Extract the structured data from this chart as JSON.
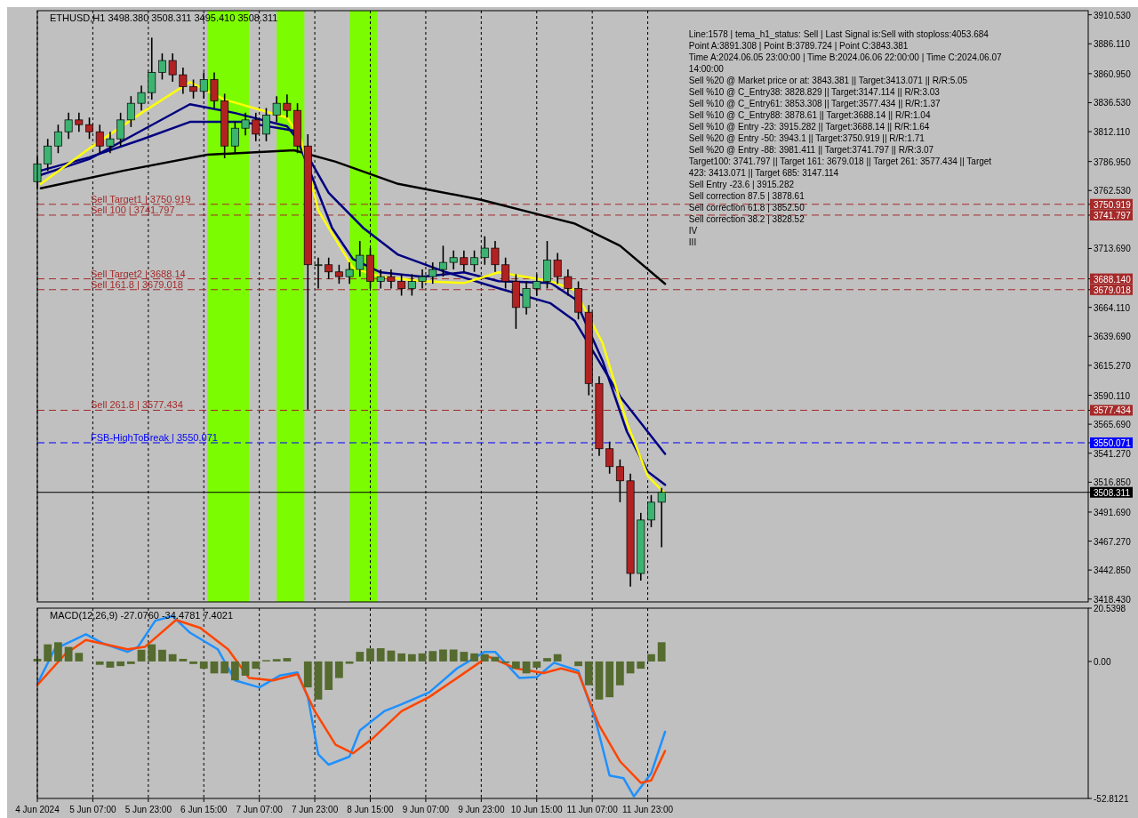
{
  "chart_data": [
    {
      "type": "candlestick",
      "title": "ETHUSD,H1  3498.380 3508.311 3495.410 3508.311",
      "annotations": [
        "Line:1578 | tema_h1_status: Sell | Last Signal is:Sell with stoploss:4053.684",
        "Point A:3891.308 | Point B:3789.724 | Point C:3843.381",
        "Time A:2024.06.05 23:00:00 | Time B:2024.06.06 22:00:00 | Time C:2024.06.07 14:00:00",
        "Sell %20 @ Market price or at: 3843.381 || Target:3413.071 || R/R:5.05",
        "Sell %10 @ C_Entry38: 3828.829 || Target:3147.114 || R/R:3.03",
        "Sell %10 @ C_Entry61: 3853.308 || Target:3577.434 || R/R:1.37",
        "Sell %10 @ C_Entry88: 3878.61 || Target:3688.14 || R/R:1.04",
        "Sell %10 @ Entry -23: 3915.282 || Target:3688.14 || R/R:1.64",
        "Sell %20 @ Entry -50: 3943.1 || Target:3750.919 || R/R:1.71",
        "Sell %20 @ Entry -88: 3981.411 || Target:3741.797 || R/R:3.07",
        "Target100: 3741.797 || Target 161: 3679.018 || Target 261: 3577.434 || Target 423: 3413.071 || Target 685: 3147.114",
        "Sell Entry -23.6 | 3915.282",
        "Sell correction 87.5 | 3878.61",
        "Sell correction 61.8 | 3852.50",
        "Sell correction 38.2 | 3828.52",
        "IV",
        "III"
      ],
      "x": [
        "2024-06-04T15:00",
        "2024-06-04T18:00",
        "2024-06-04T21:00",
        "2024-06-05T00:00",
        "2024-06-05T03:00",
        "2024-06-05T06:00",
        "2024-06-05T09:00",
        "2024-06-05T12:00",
        "2024-06-05T15:00",
        "2024-06-05T18:00",
        "2024-06-05T21:00",
        "2024-06-06T00:00",
        "2024-06-06T03:00",
        "2024-06-06T06:00",
        "2024-06-06T09:00",
        "2024-06-06T12:00",
        "2024-06-06T15:00",
        "2024-06-06T18:00",
        "2024-06-06T21:00",
        "2024-06-07T00:00",
        "2024-06-07T03:00",
        "2024-06-07T06:00",
        "2024-06-07T09:00",
        "2024-06-07T12:00",
        "2024-06-07T15:00",
        "2024-06-07T18:00",
        "2024-06-07T21:00",
        "2024-06-08T00:00",
        "2024-06-08T03:00",
        "2024-06-08T06:00",
        "2024-06-08T09:00",
        "2024-06-08T12:00",
        "2024-06-08T15:00",
        "2024-06-08T18:00",
        "2024-06-08T21:00",
        "2024-06-09T00:00",
        "2024-06-09T03:00",
        "2024-06-09T06:00",
        "2024-06-09T09:00",
        "2024-06-09T12:00",
        "2024-06-09T15:00",
        "2024-06-09T18:00",
        "2024-06-09T21:00",
        "2024-06-10T00:00",
        "2024-06-10T03:00",
        "2024-06-10T06:00",
        "2024-06-10T09:00",
        "2024-06-10T12:00",
        "2024-06-10T15:00",
        "2024-06-10T18:00",
        "2024-06-10T21:00",
        "2024-06-11T00:00",
        "2024-06-11T03:00",
        "2024-06-11T06:00",
        "2024-06-11T09:00",
        "2024-06-11T12:00",
        "2024-06-11T15:00",
        "2024-06-11T18:00",
        "2024-06-11T21:00",
        "2024-06-12T00:00",
        "2024-06-12T03:00"
      ],
      "ohlc": [
        [
          3770,
          3791,
          3764,
          3785
        ],
        [
          3785,
          3806,
          3779,
          3800
        ],
        [
          3800,
          3818,
          3794,
          3812
        ],
        [
          3812,
          3828,
          3806,
          3822
        ],
        [
          3822,
          3828,
          3812,
          3818
        ],
        [
          3818,
          3824,
          3806,
          3812
        ],
        [
          3812,
          3818,
          3794,
          3800
        ],
        [
          3800,
          3812,
          3794,
          3806
        ],
        [
          3806,
          3828,
          3800,
          3822
        ],
        [
          3822,
          3842,
          3816,
          3836
        ],
        [
          3836,
          3851,
          3830,
          3845
        ],
        [
          3845,
          3891.3,
          3839,
          3862
        ],
        [
          3862,
          3878,
          3856,
          3872
        ],
        [
          3872,
          3878,
          3854,
          3860
        ],
        [
          3860,
          3866,
          3844,
          3850
        ],
        [
          3850,
          3856,
          3840,
          3846
        ],
        [
          3846,
          3862,
          3840,
          3856
        ],
        [
          3856,
          3862,
          3832,
          3838
        ],
        [
          3838,
          3844,
          3789.7,
          3800
        ],
        [
          3800,
          3821,
          3794,
          3815
        ],
        [
          3815,
          3828,
          3809,
          3822
        ],
        [
          3822,
          3828,
          3804,
          3810
        ],
        [
          3810,
          3832,
          3804,
          3826
        ],
        [
          3826,
          3842,
          3820,
          3836
        ],
        [
          3836,
          3843.4,
          3824,
          3830
        ],
        [
          3830,
          3836,
          3794,
          3800
        ],
        [
          3800,
          3810,
          3578,
          3700
        ],
        [
          3700,
          3706,
          3680,
          3700
        ],
        [
          3700,
          3706,
          3688,
          3694
        ],
        [
          3694,
          3700,
          3684,
          3690
        ],
        [
          3690,
          3702,
          3684,
          3696
        ],
        [
          3696,
          3720,
          3690,
          3708
        ],
        [
          3708,
          3714,
          3680,
          3686
        ],
        [
          3686,
          3696,
          3680,
          3690
        ],
        [
          3690,
          3696,
          3680,
          3686
        ],
        [
          3686,
          3692,
          3674,
          3680
        ],
        [
          3680,
          3692,
          3674,
          3686
        ],
        [
          3686,
          3696,
          3680,
          3690
        ],
        [
          3690,
          3702,
          3684,
          3696
        ],
        [
          3696,
          3716,
          3690,
          3702
        ],
        [
          3702,
          3712,
          3696,
          3706
        ],
        [
          3706,
          3712,
          3694,
          3700
        ],
        [
          3700,
          3712,
          3694,
          3706
        ],
        [
          3706,
          3724,
          3700,
          3714
        ],
        [
          3714,
          3720,
          3694,
          3700
        ],
        [
          3700,
          3706,
          3680,
          3686
        ],
        [
          3686,
          3692,
          3646,
          3664
        ],
        [
          3664,
          3686,
          3658,
          3680
        ],
        [
          3680,
          3692,
          3674,
          3686
        ],
        [
          3686,
          3720,
          3680,
          3704
        ],
        [
          3704,
          3710,
          3684,
          3690
        ],
        [
          3690,
          3696,
          3674,
          3680
        ],
        [
          3680,
          3686,
          3654,
          3660
        ],
        [
          3660,
          3666,
          3590,
          3600
        ],
        [
          3600,
          3606,
          3539,
          3545
        ],
        [
          3545,
          3551,
          3524,
          3530
        ],
        [
          3530,
          3536,
          3500,
          3518
        ],
        [
          3518,
          3524,
          3429,
          3440
        ],
        [
          3440,
          3491,
          3434,
          3485
        ],
        [
          3485,
          3506,
          3479,
          3500
        ],
        [
          3500,
          3512,
          3462,
          3508.311
        ]
      ],
      "series": [
        {
          "type": "line",
          "color": "#000000",
          "x": [
            "2024-06-04T16:00",
            "2024-06-05T16:00",
            "2024-06-06T16:00",
            "2024-06-07T17:00",
            "2024-06-08T05:00",
            "2024-06-08T23:00",
            "2024-06-09T23:00",
            "2024-06-10T19:00",
            "2024-06-11T02:00",
            "2024-06-11T15:00",
            "2024-06-12T04:00"
          ],
          "values": [
            3764.4,
            3779.3,
            3792.7,
            3796.4,
            3786.8,
            3768.1,
            3754.7,
            3739.8,
            3734.6,
            3716.0,
            3683.9
          ]
        },
        {
          "type": "line",
          "color": "#000080",
          "x": [
            "2024-06-04T16:00",
            "2024-06-05T06:00",
            "2024-06-05T21:00",
            "2024-06-06T11:00",
            "2024-06-07T00:00",
            "2024-06-07T15:00",
            "2024-06-07T19:00",
            "2024-06-08T03:00",
            "2024-06-08T13:00",
            "2024-06-08T23:00",
            "2024-06-09T13:00",
            "2024-06-10T04:00",
            "2024-06-10T19:00",
            "2024-06-11T02:00",
            "2024-06-11T15:00",
            "2024-06-12T04:00"
          ],
          "values": [
            3775.6,
            3789.0,
            3812.9,
            3835.2,
            3827.8,
            3816.6,
            3801.7,
            3760.6,
            3730.9,
            3708.5,
            3693.6,
            3680.2,
            3667.5,
            3652.6,
            3589.2,
            3540.7
          ]
        },
        {
          "type": "line",
          "color": "#000080",
          "x": [
            "2024-06-04T16:00",
            "2024-06-05T06:00",
            "2024-06-05T21:00",
            "2024-06-06T11:00",
            "2024-06-07T02:00",
            "2024-06-07T17:00",
            "2024-06-07T23:00",
            "2024-06-08T04:00",
            "2024-06-08T10:00",
            "2024-06-08T18:00",
            "2024-06-09T06:00",
            "2024-06-09T18:00",
            "2024-06-10T04:00",
            "2024-06-10T19:00",
            "2024-06-11T02:00",
            "2024-06-11T10:00",
            "2024-06-11T17:00",
            "2024-06-11T23:00",
            "2024-06-12T04:00"
          ],
          "values": [
            3779.3,
            3790.5,
            3805.4,
            3820.3,
            3820.3,
            3812.9,
            3768.1,
            3730.9,
            3704.8,
            3693.6,
            3689.9,
            3693.6,
            3686.1,
            3684.6,
            3671.2,
            3619.0,
            3559.4,
            3525.8,
            3514.6
          ]
        },
        {
          "type": "line",
          "color": "#ffff00",
          "x": [
            "2024-06-04T16:00",
            "2024-06-05T06:00",
            "2024-06-05T21:00",
            "2024-06-06T11:00",
            "2024-06-06T21:00",
            "2024-06-07T15:00",
            "2024-06-07T19:00",
            "2024-06-08T00:00",
            "2024-06-08T10:00",
            "2024-06-08T18:00",
            "2024-06-09T06:00",
            "2024-06-09T18:00",
            "2024-06-10T04:00",
            "2024-06-10T19:00",
            "2024-06-11T02:00",
            "2024-06-11T10:00",
            "2024-06-11T17:00",
            "2024-06-11T23:00",
            "2024-06-12T04:00"
          ],
          "values": [
            3768.1,
            3798.0,
            3827.8,
            3853.9,
            3839.0,
            3824.0,
            3805.4,
            3745.7,
            3697.3,
            3689.9,
            3686.1,
            3684.6,
            3693.6,
            3686.1,
            3678.7,
            3633.9,
            3566.8,
            3522.1,
            3507.2
          ]
        }
      ],
      "bands": [
        {
          "axis": "x",
          "from": "2024-06-06T16:00",
          "to": "2024-06-07T04:00",
          "color": "#7cfc00"
        },
        {
          "axis": "x",
          "from": "2024-06-07T12:00",
          "to": "2024-06-07T20:00",
          "color": "#7cfc00"
        },
        {
          "axis": "x",
          "from": "2024-06-08T09:00",
          "to": "2024-06-08T17:00",
          "color": "#7cfc00"
        }
      ],
      "ref_lines": [
        {
          "axis": "y",
          "value": 3750.919,
          "label": "Sell Target1 | 3750.919",
          "color": "#a52a2a",
          "line_style": "dashed"
        },
        {
          "axis": "y",
          "value": 3741.797,
          "label": "Sell 100 | 3741.797",
          "color": "#a52a2a",
          "line_style": "dashed"
        },
        {
          "axis": "y",
          "value": 3688.14,
          "label": "Sell Target2 | 3688.14",
          "color": "#a52a2a",
          "line_style": "dashed"
        },
        {
          "axis": "y",
          "value": 3679.018,
          "label": "Sell 161.8 | 3679.018",
          "color": "#a52a2a",
          "line_style": "dashed"
        },
        {
          "axis": "y",
          "value": 3577.434,
          "label": "Sell 261.8 | 3577.434",
          "color": "#a52a2a",
          "line_style": "dashed"
        },
        {
          "axis": "y",
          "value": 3550.071,
          "label": "FSB-HighToBreak | 3550.071",
          "color": "#0000ff",
          "line_style": "dashed"
        },
        {
          "axis": "y",
          "value": 3508.311,
          "color": "#000000",
          "line_style": "solid"
        }
      ],
      "xlim": [
        "2024-06-04T15:00",
        "2024-06-17T06:00"
      ],
      "ylim": [
        3416,
        3914
      ],
      "yticks": [
        {
          "value": 3910.53,
          "label": "3910.530"
        },
        {
          "value": 3886.11,
          "label": "3886.110"
        },
        {
          "value": 3860.95,
          "label": "3860.950"
        },
        {
          "value": 3836.53,
          "label": "3836.530"
        },
        {
          "value": 3812.11,
          "label": "3812.110"
        },
        {
          "value": 3786.95,
          "label": "3786.950"
        },
        {
          "value": 3762.53,
          "label": "3762.530"
        },
        {
          "value": 3750.919,
          "label": "3750.919"
        },
        {
          "value": 3741.797,
          "label": "3741.797"
        },
        {
          "value": 3713.69,
          "label": "3713.690"
        },
        {
          "value": 3688.14,
          "label": "3688.140"
        },
        {
          "value": 3679.018,
          "label": "3679.018"
        },
        {
          "value": 3664.11,
          "label": "3664.110"
        },
        {
          "value": 3639.69,
          "label": "3639.690"
        },
        {
          "value": 3615.27,
          "label": "3615.270"
        },
        {
          "value": 3590.11,
          "label": "3590.110"
        },
        {
          "value": 3577.434,
          "label": "3577.434"
        },
        {
          "value": 3565.69,
          "label": "3565.690"
        },
        {
          "value": 3550.071,
          "label": "3550.071"
        },
        {
          "value": 3541.27,
          "label": "3541.270"
        },
        {
          "value": 3516.85,
          "label": "3516.850"
        },
        {
          "value": 3508.311,
          "label": "3508.311"
        },
        {
          "value": 3491.69,
          "label": "3491.690"
        },
        {
          "value": 3467.27,
          "label": "3467.270"
        },
        {
          "value": 3442.85,
          "label": "3442.850"
        },
        {
          "value": 3418.43,
          "label": "3418.430"
        }
      ],
      "xticks": [
        {
          "value": "2024-06-04T15:00",
          "label": null
        },
        {
          "value": "2024-06-05T07:00",
          "label": null
        },
        {
          "value": "2024-06-05T23:00",
          "label": null
        },
        {
          "value": "2024-06-06T15:00",
          "label": null
        },
        {
          "value": "2024-06-07T07:00",
          "label": null
        },
        {
          "value": "2024-06-07T23:00",
          "label": null
        },
        {
          "value": "2024-06-08T15:00",
          "label": null
        },
        {
          "value": "2024-06-09T07:00",
          "label": null
        },
        {
          "value": "2024-06-09T23:00",
          "label": null
        },
        {
          "value": "2024-06-10T15:00",
          "label": null
        },
        {
          "value": "2024-06-11T07:00",
          "label": null
        },
        {
          "value": "2024-06-11T23:00",
          "label": null
        }
      ],
      "grid": "x",
      "tick_labels": "y"
    },
    {
      "type": "bar",
      "title": "MACD(12,26,9) -27.0760 -34.4781 7.4021",
      "x": [
        "2024-06-04T15:00",
        "2024-06-04T18:00",
        "2024-06-04T21:00",
        "2024-06-05T00:00",
        "2024-06-05T03:00",
        "2024-06-05T06:00",
        "2024-06-05T09:00",
        "2024-06-05T12:00",
        "2024-06-05T15:00",
        "2024-06-05T18:00",
        "2024-06-05T21:00",
        "2024-06-06T00:00",
        "2024-06-06T03:00",
        "2024-06-06T06:00",
        "2024-06-06T09:00",
        "2024-06-06T12:00",
        "2024-06-06T15:00",
        "2024-06-06T18:00",
        "2024-06-06T21:00",
        "2024-06-07T00:00",
        "2024-06-07T03:00",
        "2024-06-07T06:00",
        "2024-06-07T09:00",
        "2024-06-07T12:00",
        "2024-06-07T15:00",
        "2024-06-07T18:00",
        "2024-06-07T21:00",
        "2024-06-08T00:00",
        "2024-06-08T03:00",
        "2024-06-08T06:00",
        "2024-06-08T09:00",
        "2024-06-08T12:00",
        "2024-06-08T15:00",
        "2024-06-08T18:00",
        "2024-06-08T21:00",
        "2024-06-09T00:00",
        "2024-06-09T03:00",
        "2024-06-09T06:00",
        "2024-06-09T09:00",
        "2024-06-09T12:00",
        "2024-06-09T15:00",
        "2024-06-09T18:00",
        "2024-06-09T21:00",
        "2024-06-10T00:00",
        "2024-06-10T03:00",
        "2024-06-10T06:00",
        "2024-06-10T09:00",
        "2024-06-10T12:00",
        "2024-06-10T15:00",
        "2024-06-10T18:00",
        "2024-06-10T21:00",
        "2024-06-11T00:00",
        "2024-06-11T03:00",
        "2024-06-11T06:00",
        "2024-06-11T09:00",
        "2024-06-11T12:00",
        "2024-06-11T15:00",
        "2024-06-11T18:00",
        "2024-06-11T21:00",
        "2024-06-12T00:00",
        "2024-06-12T03:00"
      ],
      "series": [
        {
          "color": "#556b2f",
          "values": [
            1,
            6.6,
            7.4,
            5.6,
            3.3,
            0,
            -1.3,
            -2.4,
            -1.8,
            -1,
            4.5,
            6.6,
            4.5,
            2.8,
            1,
            -1,
            -2.8,
            -4.6,
            -4.6,
            -7.3,
            -5.5,
            -2.8,
            0.5,
            0.9,
            1.3,
            0,
            -10,
            -14.7,
            -11,
            -6.4,
            -0.9,
            3.7,
            5,
            5.1,
            4.2,
            3.1,
            2.8,
            3.1,
            4,
            4.6,
            4.6,
            3.7,
            3.1,
            2.8,
            1.8,
            -0.6,
            -2.8,
            -4.6,
            -2.4,
            1.3,
            2.8,
            0,
            -1.8,
            -9.2,
            -14.7,
            -13.8,
            -9.2,
            -4.6,
            -2.8,
            2.8,
            7.4
          ]
        },
        {
          "type": "line",
          "color": "#1e90ff",
          "x": [
            "2024-06-04T15:00",
            "2024-06-04T20:00",
            "2024-06-05T05:00",
            "2024-06-05T10:00",
            "2024-06-05T17:00",
            "2024-06-05T20:00",
            "2024-06-06T01:00",
            "2024-06-06T06:00",
            "2024-06-06T11:00",
            "2024-06-06T19:00",
            "2024-06-07T00:00",
            "2024-06-07T07:00",
            "2024-06-07T13:00",
            "2024-06-07T18:00",
            "2024-06-07T21:00",
            "2024-06-08T00:00",
            "2024-06-08T03:00",
            "2024-06-08T09:00",
            "2024-06-08T12:00",
            "2024-06-08T19:00",
            "2024-06-09T00:00",
            "2024-06-09T08:00",
            "2024-06-09T16:00",
            "2024-06-10T00:00",
            "2024-06-10T03:00",
            "2024-06-10T10:00",
            "2024-06-10T15:00",
            "2024-06-10T20:00",
            "2024-06-11T03:00",
            "2024-06-11T08:00",
            "2024-06-11T12:00",
            "2024-06-11T16:00",
            "2024-06-11T19:00",
            "2024-06-12T00:00",
            "2024-06-12T04:00"
          ],
          "values": [
            -8.6,
            4.7,
            10.5,
            6.9,
            3.7,
            5.6,
            15.7,
            17.5,
            11.1,
            4.7,
            -7.3,
            -10.0,
            -5.4,
            -4.2,
            -13.7,
            -35.8,
            -39.8,
            -36.7,
            -26.6,
            -19.2,
            -16.5,
            -11.9,
            -2.7,
            3.7,
            3.7,
            -6.4,
            -6.0,
            -0.5,
            -3.6,
            -22.9,
            -44.0,
            -45.0,
            -52.0,
            -43.1,
            -27.1
          ]
        },
        {
          "type": "line",
          "color": "#ff4500",
          "x": [
            "2024-06-04T15:00",
            "2024-06-04T23:00",
            "2024-06-05T05:00",
            "2024-06-05T17:00",
            "2024-06-05T22:00",
            "2024-06-06T07:00",
            "2024-06-06T14:00",
            "2024-06-06T22:00",
            "2024-06-07T04:00",
            "2024-06-07T11:00",
            "2024-06-07T18:00",
            "2024-06-07T23:00",
            "2024-06-08T05:00",
            "2024-06-08T10:00",
            "2024-06-08T16:00",
            "2024-06-09T00:00",
            "2024-06-09T08:00",
            "2024-06-09T16:00",
            "2024-06-10T01:00",
            "2024-06-10T09:00",
            "2024-06-10T17:00",
            "2024-06-10T22:00",
            "2024-06-11T03:00",
            "2024-06-11T09:00",
            "2024-06-11T15:00",
            "2024-06-11T21:00",
            "2024-06-12T00:00",
            "2024-06-12T04:00"
          ],
          "values": [
            -9.1,
            2.8,
            8.3,
            4.7,
            5.6,
            16.0,
            12.9,
            4.7,
            -6.4,
            -7.3,
            -4.9,
            -19.2,
            -32.1,
            -35.4,
            -29.3,
            -19.2,
            -13.7,
            -6.4,
            1.9,
            -2.7,
            -4.5,
            -2.7,
            -4.5,
            -24.7,
            -38.5,
            -46.8,
            -45.9,
            -34.5
          ]
        }
      ],
      "xlim": [
        "2024-06-04T15:00",
        "2024-06-17T06:00"
      ],
      "ylim": [
        -52.8121,
        20.5398
      ],
      "yticks": [
        20.5398,
        {
          "value": 0,
          "label": "0.00"
        },
        -52.8121
      ],
      "xticks": [
        {
          "value": "2024-06-04T15:00",
          "label": "4 Jun 2024"
        },
        {
          "value": "2024-06-05T07:00",
          "label": "5 Jun 07:00"
        },
        {
          "value": "2024-06-05T23:00",
          "label": "5 Jun 23:00"
        },
        {
          "value": "2024-06-06T15:00",
          "label": "6 Jun 15:00"
        },
        {
          "value": "2024-06-07T07:00",
          "label": "7 Jun 07:00"
        },
        {
          "value": "2024-06-07T23:00",
          "label": "7 Jun 23:00"
        },
        {
          "value": "2024-06-08T15:00",
          "label": "8 Jun 15:00"
        },
        {
          "value": "2024-06-09T07:00",
          "label": "9 Jun 07:00"
        },
        {
          "value": "2024-06-09T23:00",
          "label": "9 Jun 23:00"
        },
        {
          "value": "2024-06-10T15:00",
          "label": "10 Jun 15:00"
        },
        {
          "value": "2024-06-11T07:00",
          "label": "11 Jun 07:00"
        },
        {
          "value": "2024-06-11T23:00",
          "label": "11 Jun 23:00"
        }
      ],
      "grid": "x"
    }
  ]
}
